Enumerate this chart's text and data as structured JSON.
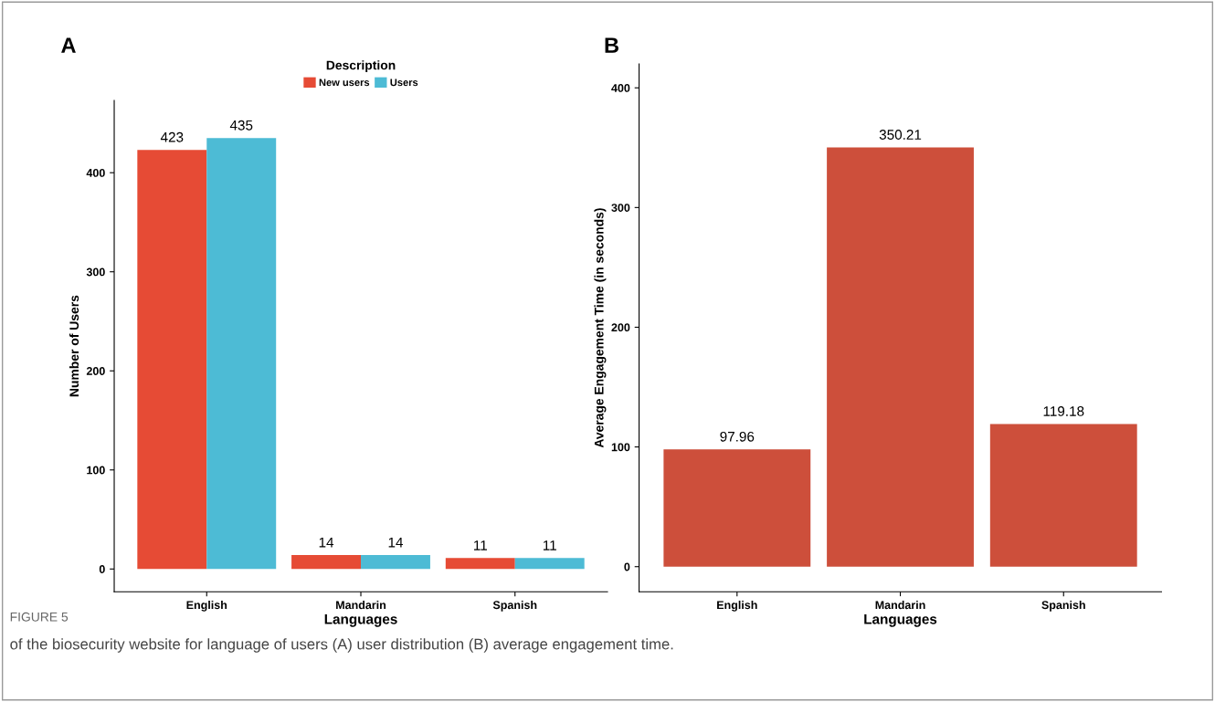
{
  "chart_data": [
    {
      "type": "bar",
      "title": "A",
      "xlabel": "Languages",
      "ylabel": "Number of Users",
      "legend_title": "Description",
      "legend": "top",
      "categories": [
        "English",
        "Mandarin",
        "Spanish"
      ],
      "series": [
        {
          "name": "New users",
          "color": "#e64b35",
          "values": [
            423,
            14,
            11
          ]
        },
        {
          "name": "Users",
          "color": "#4dbbd5",
          "values": [
            435,
            14,
            11
          ]
        }
      ],
      "ylim": [
        -23,
        473
      ],
      "yticks": [
        0,
        100,
        200,
        300,
        400
      ],
      "grid": false,
      "data_labels": true,
      "annotations": [
        "FIGURE 5",
        "of the biosecurity website for language of users (A) user distribution (B) average engagement time."
      ]
    },
    {
      "type": "bar",
      "title": "B",
      "xlabel": "Languages",
      "ylabel": "Average Engagement Time (in seconds)",
      "categories": [
        "English",
        "Mandarin",
        "Spanish"
      ],
      "series": [
        {
          "color": "#cd4f3b",
          "values": [
            97.96,
            350.21,
            119.18
          ]
        }
      ],
      "ylim": [
        -21,
        420
      ],
      "yticks": [
        0,
        100,
        200,
        300,
        400
      ],
      "grid": false,
      "data_labels": true
    }
  ]
}
